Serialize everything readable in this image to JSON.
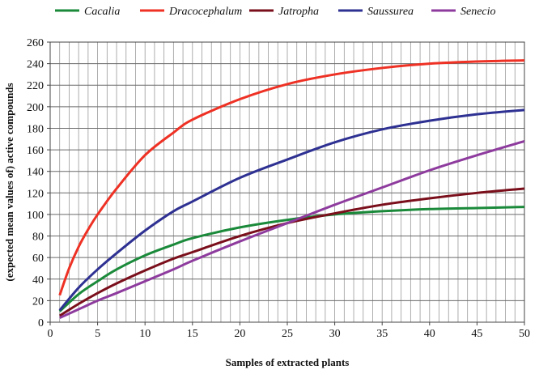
{
  "chart_data": {
    "type": "line",
    "xlabel": "Samples of extracted plants",
    "ylabel": "(expected mean values of) active compounds",
    "xlim": [
      0,
      50
    ],
    "ylim": [
      0,
      260
    ],
    "x_ticks": [
      0,
      5,
      10,
      15,
      20,
      25,
      30,
      35,
      40,
      45,
      50
    ],
    "y_ticks": [
      0,
      20,
      40,
      60,
      80,
      100,
      120,
      140,
      160,
      180,
      200,
      220,
      240,
      260
    ],
    "grid": "vertical lines every 1 unit, horizontal lines every 20",
    "legend_position": "top",
    "series": [
      {
        "name": "Cacalia",
        "color": "#1a8a3a",
        "x": [
          1,
          3,
          5,
          7,
          10,
          13,
          15,
          20,
          25,
          30,
          35,
          40,
          45,
          50
        ],
        "y": [
          10,
          26,
          38,
          49,
          62,
          72,
          78,
          88,
          95,
          100,
          103,
          105,
          106,
          107
        ]
      },
      {
        "name": "Dracocephalum",
        "color": "#ee3124",
        "x": [
          1,
          2,
          3,
          4,
          5,
          7,
          10,
          13,
          15,
          20,
          25,
          30,
          35,
          40,
          45,
          50
        ],
        "y": [
          25,
          50,
          70,
          86,
          100,
          124,
          155,
          176,
          188,
          207,
          221,
          230,
          236,
          240,
          242,
          243
        ]
      },
      {
        "name": "Jatropha",
        "color": "#7a0f1b",
        "x": [
          1,
          3,
          5,
          7,
          10,
          13,
          15,
          20,
          25,
          30,
          35,
          40,
          45,
          50
        ],
        "y": [
          6,
          17,
          27,
          36,
          48,
          59,
          65,
          80,
          92,
          101,
          109,
          115,
          120,
          124
        ]
      },
      {
        "name": "Saussurea",
        "color": "#2e3192",
        "x": [
          1,
          3,
          5,
          7,
          10,
          13,
          15,
          20,
          25,
          30,
          35,
          40,
          45,
          50
        ],
        "y": [
          11,
          32,
          49,
          64,
          85,
          103,
          112,
          134,
          151,
          167,
          179,
          187,
          193,
          197
        ]
      },
      {
        "name": "Senecio",
        "color": "#8e3b9e",
        "x": [
          1,
          3,
          5,
          7,
          10,
          13,
          15,
          20,
          25,
          30,
          35,
          40,
          45,
          50
        ],
        "y": [
          4,
          12,
          20,
          27,
          38,
          49,
          57,
          75,
          92,
          109,
          125,
          141,
          155,
          168
        ]
      }
    ]
  }
}
